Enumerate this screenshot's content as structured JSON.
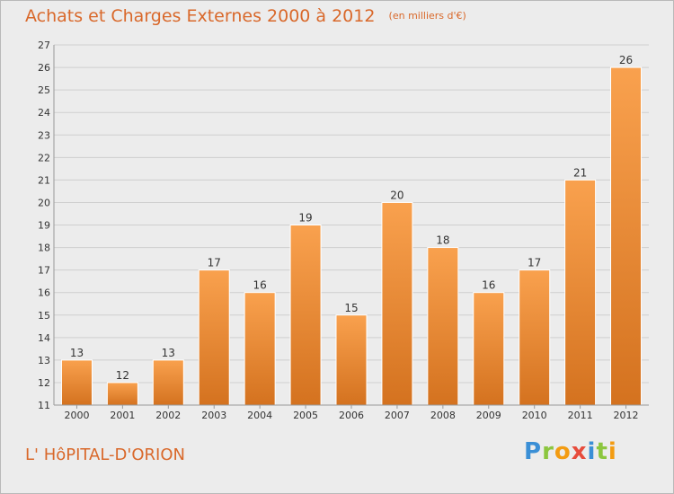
{
  "header": {
    "title": "Achats et Charges Externes 2000 à 2012",
    "subtitle": "(en milliers d'€)"
  },
  "footer": {
    "place": "L' HôPITAL-D'ORION",
    "logo_letters": [
      "P",
      "r",
      "o",
      "x",
      "i",
      "t",
      "i"
    ],
    "logo_colors": [
      "#3a8fd6",
      "#8cc63f",
      "#f39c12",
      "#e74c3c",
      "#3a8fd6",
      "#8cc63f",
      "#f39c12"
    ]
  },
  "colors": {
    "bar_light": "#f9a14e",
    "bar_dark": "#d4721f",
    "grid": "#cfcfcf",
    "text": "#333333",
    "accent": "#d9682a"
  },
  "chart_data": {
    "type": "bar",
    "title": "Achats et Charges Externes 2000 à 2012",
    "subtitle": "(en milliers d'€)",
    "categories": [
      "2000",
      "2001",
      "2002",
      "2003",
      "2004",
      "2005",
      "2006",
      "2007",
      "2008",
      "2009",
      "2010",
      "2011",
      "2012"
    ],
    "values": [
      13,
      12,
      13,
      17,
      16,
      19,
      15,
      20,
      18,
      16,
      17,
      21,
      26
    ],
    "ylim": [
      11,
      27
    ],
    "yticks": [
      11,
      12,
      13,
      14,
      15,
      16,
      17,
      18,
      19,
      20,
      21,
      22,
      23,
      24,
      25,
      26,
      27
    ],
    "grid": true,
    "data_labels": true
  }
}
